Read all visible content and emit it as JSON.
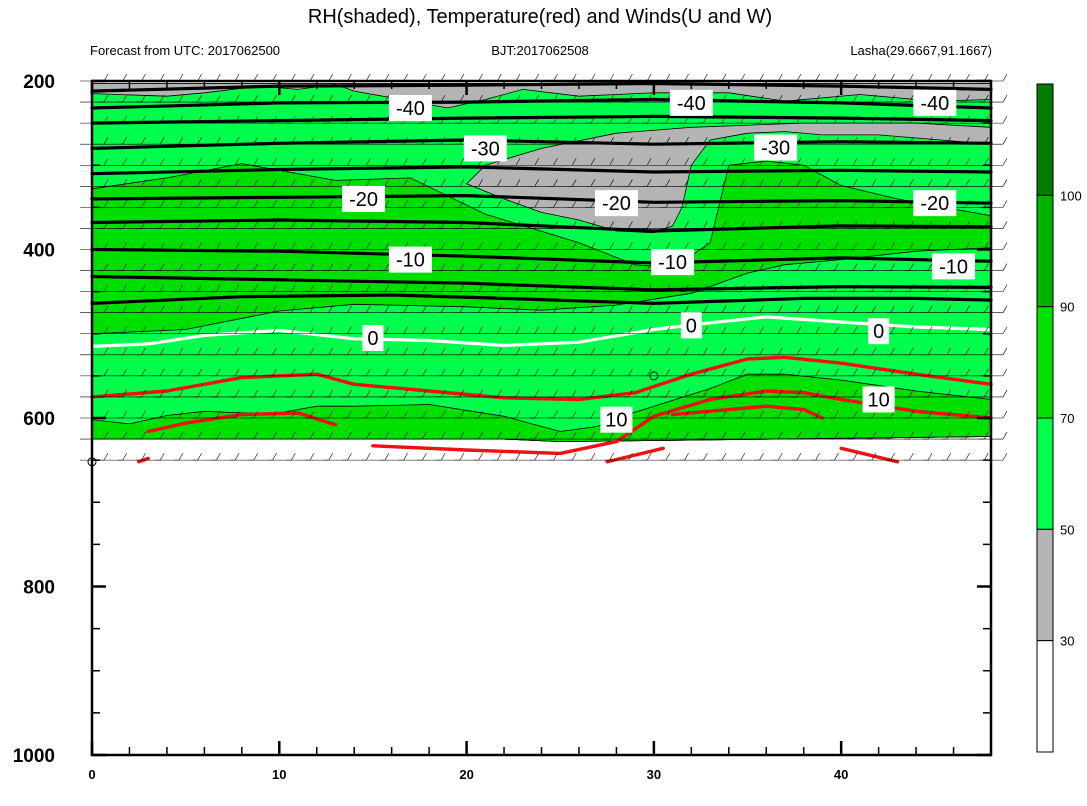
{
  "chart_data": {
    "type": "heatmap",
    "title": "RH(shaded), Temperature(red) and Winds(U and W)",
    "subtitles": {
      "left": "Forecast from UTC: 2017062500",
      "center": "BJT:2017062508",
      "right": "Lasha(29.6667,91.1667)"
    },
    "xlim": [
      0,
      48
    ],
    "ylim": [
      1000,
      200
    ],
    "x_ticks": [
      0,
      10,
      20,
      30,
      40
    ],
    "y_ticks": [
      200,
      400,
      600,
      800,
      1000
    ],
    "colorbar": {
      "levels": [
        30,
        50,
        70,
        90,
        100
      ],
      "colors": [
        "#ffffff",
        "#b4b4b4",
        "#00ff4c",
        "#00e000",
        "#00b300",
        "#007d00"
      ]
    },
    "colors": {
      "temperature": "#ee1111",
      "freezing": "#ffffff",
      "cold_isotherm": "#000000",
      "wind_barb": "#000000"
    },
    "rh_regions": [
      {
        "level": 30,
        "points": [
          [
            0,
            203
          ],
          [
            48,
            203
          ],
          [
            48,
            622
          ],
          [
            25,
            628
          ],
          [
            22,
            625
          ],
          [
            0,
            625
          ]
        ]
      },
      {
        "level": 50,
        "points": [
          [
            0,
            228
          ],
          [
            1,
            230
          ],
          [
            4,
            218
          ],
          [
            6,
            226
          ],
          [
            8,
            216
          ],
          [
            12,
            222
          ],
          [
            13,
            238
          ],
          [
            18,
            222
          ],
          [
            20,
            242
          ],
          [
            24,
            250
          ],
          [
            28,
            258
          ],
          [
            31,
            246
          ],
          [
            34,
            238
          ],
          [
            37,
            235
          ],
          [
            40,
            240
          ],
          [
            44,
            240
          ],
          [
            48,
            246
          ],
          [
            48,
            622
          ],
          [
            25,
            628
          ],
          [
            22,
            625
          ],
          [
            0,
            625
          ]
        ]
      },
      {
        "level": 70,
        "points": [
          [
            0,
            241
          ],
          [
            1,
            243
          ],
          [
            3,
            236
          ],
          [
            5,
            244
          ],
          [
            7,
            236
          ],
          [
            10,
            240
          ],
          [
            13,
            244
          ],
          [
            15,
            234
          ],
          [
            18,
            240
          ],
          [
            19,
            236
          ],
          [
            20,
            245
          ],
          [
            24,
            252
          ],
          [
            28,
            262
          ],
          [
            30,
            258
          ],
          [
            32,
            270
          ],
          [
            35,
            278
          ],
          [
            37,
            280
          ],
          [
            40,
            288
          ],
          [
            44,
            292
          ],
          [
            48,
            295
          ],
          [
            48,
            398
          ],
          [
            44,
            402
          ],
          [
            40,
            412
          ],
          [
            37,
            418
          ],
          [
            35,
            428
          ],
          [
            32,
            452
          ],
          [
            28,
            466
          ],
          [
            24,
            472
          ],
          [
            20,
            468
          ],
          [
            14,
            465
          ],
          [
            10,
            473
          ],
          [
            5,
            495
          ],
          [
            0,
            500
          ],
          [
            0,
            602
          ],
          [
            2,
            607
          ],
          [
            4,
            597
          ],
          [
            6,
            592
          ],
          [
            8,
            594
          ],
          [
            10,
            594
          ],
          [
            12,
            586
          ],
          [
            14,
            586
          ],
          [
            18,
            584
          ],
          [
            22,
            598
          ],
          [
            25,
            616
          ],
          [
            27,
            610
          ],
          [
            28,
            600
          ],
          [
            30,
            586
          ],
          [
            33,
            565
          ],
          [
            35,
            548
          ],
          [
            37,
            548
          ],
          [
            40,
            555
          ],
          [
            44,
            568
          ],
          [
            48,
            578
          ],
          [
            48,
            622
          ],
          [
            25,
            628
          ],
          [
            22,
            625
          ],
          [
            0,
            625
          ]
        ]
      },
      {
        "level": 50,
        "points": [
          [
            0,
            328
          ],
          [
            4,
            315
          ],
          [
            8,
            298
          ],
          [
            13,
            318
          ],
          [
            17,
            315
          ],
          [
            21,
            358
          ],
          [
            26,
            392
          ],
          [
            29,
            418
          ],
          [
            31,
            422
          ],
          [
            33,
            392
          ],
          [
            34,
            300
          ],
          [
            36,
            295
          ],
          [
            38,
            300
          ],
          [
            40,
            324
          ],
          [
            43,
            340
          ],
          [
            48,
            360
          ],
          [
            48,
            203
          ],
          [
            0,
            203
          ]
        ]
      },
      {
        "level": 30,
        "points": [
          [
            4,
            218
          ],
          [
            6,
            214
          ],
          [
            9,
            206
          ],
          [
            11,
            210
          ],
          [
            13,
            204
          ],
          [
            14,
            212
          ],
          [
            16,
            220
          ],
          [
            19,
            232
          ],
          [
            21,
            222
          ],
          [
            23,
            210
          ],
          [
            26,
            218
          ],
          [
            30,
            214
          ],
          [
            34,
            214
          ],
          [
            37,
            224
          ],
          [
            41,
            216
          ],
          [
            45,
            224
          ],
          [
            48,
            222
          ],
          [
            48,
            203
          ],
          [
            0,
            203
          ],
          [
            0,
            215
          ]
        ]
      },
      {
        "level": 30,
        "points": [
          [
            20,
            322
          ],
          [
            22,
            340
          ],
          [
            24,
            356
          ],
          [
            26,
            365
          ],
          [
            28,
            378
          ],
          [
            30,
            380
          ],
          [
            31,
            372
          ],
          [
            31.5,
            350
          ],
          [
            32,
            300
          ],
          [
            33,
            270
          ],
          [
            35,
            262
          ],
          [
            37,
            260
          ],
          [
            39,
            264
          ],
          [
            42,
            264
          ],
          [
            48,
            275
          ],
          [
            48,
            255
          ],
          [
            44,
            250
          ],
          [
            38,
            250
          ],
          [
            32,
            255
          ],
          [
            28,
            262
          ],
          [
            24,
            280
          ],
          [
            21,
            300
          ]
        ]
      }
    ],
    "isotherms": [
      {
        "value": -40,
        "points": [
          [
            0,
            212
          ],
          [
            10,
            206
          ],
          [
            20,
            205
          ],
          [
            30,
            203
          ],
          [
            40,
            206
          ],
          [
            48,
            210
          ]
        ]
      },
      {
        "value": -40,
        "points": [
          [
            0,
            232
          ],
          [
            10,
            226
          ],
          [
            20,
            225
          ],
          [
            30,
            222
          ],
          [
            40,
            226
          ],
          [
            48,
            232
          ]
        ]
      },
      {
        "value": -40,
        "points": [
          [
            0,
            250
          ],
          [
            10,
            247
          ],
          [
            20,
            244
          ],
          [
            30,
            242
          ],
          [
            40,
            244
          ],
          [
            48,
            247
          ]
        ]
      },
      {
        "value": -30,
        "points": [
          [
            0,
            280
          ],
          [
            10,
            274
          ],
          [
            20,
            270
          ],
          [
            30,
            275
          ],
          [
            40,
            272
          ],
          [
            48,
            274
          ]
        ]
      },
      {
        "value": -30,
        "points": [
          [
            0,
            310
          ],
          [
            10,
            305
          ],
          [
            20,
            302
          ],
          [
            30,
            308
          ],
          [
            40,
            306
          ],
          [
            48,
            308
          ]
        ]
      },
      {
        "value": -20,
        "points": [
          [
            0,
            340
          ],
          [
            10,
            338
          ],
          [
            20,
            336
          ],
          [
            30,
            344
          ],
          [
            40,
            342
          ],
          [
            48,
            345
          ]
        ]
      },
      {
        "value": -20,
        "points": [
          [
            0,
            368
          ],
          [
            10,
            365
          ],
          [
            20,
            368
          ],
          [
            30,
            378
          ],
          [
            40,
            372
          ],
          [
            48,
            373
          ]
        ]
      },
      {
        "value": -10,
        "points": [
          [
            0,
            400
          ],
          [
            10,
            402
          ],
          [
            20,
            408
          ],
          [
            30,
            416
          ],
          [
            40,
            410
          ],
          [
            48,
            414
          ]
        ]
      },
      {
        "value": -10,
        "points": [
          [
            0,
            432
          ],
          [
            10,
            436
          ],
          [
            20,
            440
          ],
          [
            30,
            448
          ],
          [
            40,
            444
          ],
          [
            48,
            445
          ]
        ]
      },
      {
        "value": -10,
        "points": [
          [
            0,
            464
          ],
          [
            8,
            456
          ],
          [
            16,
            454
          ],
          [
            22,
            458
          ],
          [
            30,
            464
          ],
          [
            38,
            458
          ],
          [
            44,
            458
          ],
          [
            48,
            460
          ]
        ]
      },
      {
        "value": 0,
        "points": [
          [
            0,
            515
          ],
          [
            3,
            512
          ],
          [
            6,
            502
          ],
          [
            10,
            496
          ],
          [
            14,
            506
          ],
          [
            18,
            508
          ],
          [
            22,
            514
          ],
          [
            26,
            510
          ],
          [
            30,
            495
          ],
          [
            33,
            487
          ],
          [
            36,
            480
          ],
          [
            40,
            486
          ],
          [
            44,
            492
          ],
          [
            48,
            495
          ]
        ]
      },
      {
        "value": 10,
        "points": [
          [
            0,
            575
          ],
          [
            4,
            568
          ],
          [
            8,
            552
          ],
          [
            12,
            548
          ],
          [
            14,
            560
          ],
          [
            18,
            568
          ],
          [
            22,
            576
          ],
          [
            26,
            578
          ],
          [
            29,
            570
          ],
          [
            32,
            548
          ],
          [
            35,
            530
          ],
          [
            37,
            528
          ],
          [
            40,
            535
          ],
          [
            44,
            548
          ],
          [
            48,
            560
          ]
        ]
      },
      {
        "value": 10,
        "points": [
          [
            3,
            616
          ],
          [
            5,
            606
          ],
          [
            8,
            596
          ],
          [
            11,
            594
          ],
          [
            13,
            608
          ]
        ]
      },
      {
        "value": 10,
        "points": [
          [
            15,
            633
          ],
          [
            20,
            638
          ],
          [
            25,
            642
          ],
          [
            28,
            628
          ],
          [
            30,
            598
          ],
          [
            33,
            578
          ],
          [
            36,
            568
          ],
          [
            38,
            570
          ],
          [
            40,
            578
          ],
          [
            44,
            592
          ],
          [
            48,
            600
          ]
        ]
      },
      {
        "value": 10,
        "points": [
          [
            31,
            596
          ],
          [
            34,
            590
          ],
          [
            36,
            586
          ],
          [
            38,
            590
          ],
          [
            39,
            600
          ]
        ]
      },
      {
        "value": 10,
        "points": [
          [
            2.5,
            652
          ],
          [
            3,
            648
          ]
        ]
      },
      {
        "value": 10,
        "points": [
          [
            27.5,
            652
          ],
          [
            30.5,
            636
          ]
        ]
      },
      {
        "value": 10,
        "points": [
          [
            40,
            636
          ],
          [
            43,
            652
          ]
        ]
      }
    ],
    "contour_labels": [
      {
        "text": "-40",
        "x": 17,
        "y": 232
      },
      {
        "text": "-40",
        "x": 32,
        "y": 226
      },
      {
        "text": "-40",
        "x": 45,
        "y": 226
      },
      {
        "text": "-30",
        "x": 21,
        "y": 280
      },
      {
        "text": "-30",
        "x": 36.5,
        "y": 279
      },
      {
        "text": "-20",
        "x": 14.5,
        "y": 340
      },
      {
        "text": "-20",
        "x": 28,
        "y": 345
      },
      {
        "text": "-20",
        "x": 45,
        "y": 345
      },
      {
        "text": "-10",
        "x": 17,
        "y": 412
      },
      {
        "text": "-10",
        "x": 31,
        "y": 415
      },
      {
        "text": "-10",
        "x": 46,
        "y": 420
      },
      {
        "text": "0",
        "x": 15,
        "y": 505
      },
      {
        "text": "0",
        "x": 32,
        "y": 490
      },
      {
        "text": "0",
        "x": 42,
        "y": 497
      },
      {
        "text": "10",
        "x": 28,
        "y": 602
      },
      {
        "text": "10",
        "x": 42,
        "y": 578
      }
    ],
    "wind_barbs": {
      "x_step": 1,
      "levels": [
        200,
        225,
        250,
        275,
        300,
        325,
        350,
        375,
        400,
        425,
        450,
        475,
        500,
        525,
        550,
        575,
        600,
        625,
        650
      ]
    },
    "missing_markers": [
      {
        "x": 30,
        "y": 550
      },
      {
        "x": 0,
        "y": 652
      }
    ]
  }
}
